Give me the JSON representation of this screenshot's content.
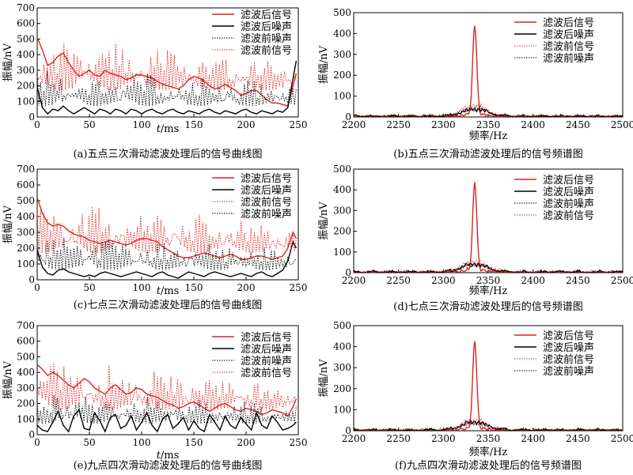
{
  "colors": {
    "red": "#e02020",
    "black": "#000000"
  },
  "chart_data": [
    {
      "id": "a",
      "type": "line",
      "kind": "time",
      "caption": "(a)五点三次滑动滤波处理后的信号曲线图",
      "xlabel_italic": "t",
      "xlabel_unit": "/ms",
      "ylabel": "振幅/nV",
      "xlim": [
        0,
        250
      ],
      "ylim": [
        0,
        700
      ],
      "xticks": [
        "0",
        "50",
        "100",
        "150",
        "200",
        "250"
      ],
      "yticks": [
        "0",
        "100",
        "200",
        "300",
        "400",
        "500",
        "600",
        "700"
      ],
      "series": [
        {
          "name": "滤波后信号",
          "color": "#e02020",
          "style": "solid",
          "x": [
            0,
            5,
            10,
            15,
            20,
            25,
            30,
            35,
            40,
            45,
            50,
            55,
            60,
            65,
            70,
            75,
            80,
            85,
            90,
            95,
            100,
            105,
            110,
            115,
            120,
            125,
            130,
            135,
            140,
            145,
            150,
            155,
            160,
            165,
            170,
            175,
            180,
            185,
            190,
            195,
            200,
            205,
            210,
            215,
            220,
            225,
            230,
            235,
            240,
            245,
            248
          ],
          "y": [
            510,
            430,
            330,
            350,
            390,
            410,
            350,
            300,
            260,
            280,
            300,
            270,
            260,
            300,
            280,
            270,
            260,
            240,
            250,
            270,
            270,
            260,
            250,
            230,
            210,
            200,
            190,
            180,
            200,
            240,
            260,
            250,
            230,
            200,
            180,
            190,
            210,
            190,
            170,
            140,
            150,
            170,
            170,
            140,
            110,
            90,
            90,
            80,
            70,
            200,
            280
          ]
        },
        {
          "name": "滤波后噪声",
          "color": "#000000",
          "style": "solid",
          "x": [
            0,
            5,
            10,
            15,
            20,
            25,
            30,
            35,
            40,
            45,
            50,
            55,
            60,
            65,
            70,
            75,
            80,
            85,
            90,
            95,
            100,
            105,
            110,
            115,
            120,
            125,
            130,
            135,
            140,
            145,
            150,
            155,
            160,
            165,
            170,
            175,
            180,
            185,
            190,
            195,
            200,
            205,
            210,
            215,
            220,
            225,
            230,
            235,
            240,
            245,
            248
          ],
          "y": [
            190,
            60,
            20,
            50,
            40,
            70,
            40,
            20,
            40,
            60,
            40,
            20,
            50,
            40,
            20,
            50,
            40,
            20,
            50,
            40,
            20,
            40,
            50,
            30,
            20,
            40,
            50,
            30,
            20,
            40,
            30,
            20,
            40,
            50,
            30,
            20,
            40,
            30,
            20,
            40,
            50,
            30,
            20,
            40,
            30,
            20,
            40,
            30,
            60,
            250,
            360
          ]
        },
        {
          "name": "滤波前噪声",
          "color": "#000000",
          "style": "dotted",
          "amp": 230,
          "base": 70
        },
        {
          "name": "滤波前信号",
          "color": "#e02020",
          "style": "dotted",
          "amp": 320,
          "base": 170
        }
      ]
    },
    {
      "id": "b",
      "type": "line",
      "kind": "spectrum",
      "caption": "(b)五点三次滑动滤波处理后的信号频谱图",
      "xlabel": "频率/Hz",
      "ylabel": "振幅/nV",
      "xlim": [
        2200,
        2500
      ],
      "ylim": [
        0,
        500
      ],
      "xticks": [
        "2200",
        "2250",
        "2300",
        "2350",
        "2400",
        "2450",
        "2500"
      ],
      "yticks": [
        "0",
        "100",
        "200",
        "300",
        "400",
        "500"
      ],
      "peak_x": 2335,
      "series": [
        {
          "name": "滤波后信号",
          "color": "#e02020",
          "style": "solid",
          "peak": 430
        },
        {
          "name": "滤波后噪声",
          "color": "#000000",
          "style": "solid",
          "peak": 40
        },
        {
          "name": "滤波前信号",
          "color": "#e02020",
          "style": "dotted",
          "peak": 60
        },
        {
          "name": "滤波前噪声",
          "color": "#000000",
          "style": "dotted",
          "peak": 45
        }
      ]
    },
    {
      "id": "c",
      "type": "line",
      "kind": "time",
      "caption": "(c)七点三次滑动滤波处理后的信号曲线图",
      "xlabel_italic": "t",
      "xlabel_unit": "/ms",
      "ylabel": "振幅/nV",
      "xlim": [
        0,
        250
      ],
      "ylim": [
        0,
        700
      ],
      "xticks": [
        "0",
        "50",
        "100",
        "150",
        "200",
        "250"
      ],
      "yticks": [
        "0",
        "100",
        "200",
        "300",
        "400",
        "500",
        "600",
        "700"
      ],
      "series": [
        {
          "name": "滤波后信号",
          "color": "#e02020",
          "style": "solid",
          "x": [
            0,
            5,
            10,
            15,
            20,
            25,
            30,
            35,
            40,
            45,
            50,
            55,
            60,
            65,
            70,
            75,
            80,
            85,
            90,
            95,
            100,
            105,
            110,
            115,
            120,
            125,
            130,
            135,
            140,
            145,
            150,
            155,
            160,
            165,
            170,
            175,
            180,
            185,
            190,
            195,
            200,
            205,
            210,
            215,
            220,
            225,
            230,
            235,
            240,
            245,
            248
          ],
          "y": [
            520,
            420,
            360,
            340,
            350,
            340,
            310,
            290,
            280,
            270,
            250,
            240,
            230,
            240,
            250,
            240,
            230,
            220,
            230,
            250,
            260,
            260,
            250,
            240,
            210,
            190,
            170,
            150,
            140,
            140,
            150,
            160,
            170,
            160,
            150,
            140,
            150,
            160,
            150,
            130,
            130,
            140,
            150,
            150,
            140,
            130,
            140,
            150,
            200,
            300,
            260
          ]
        },
        {
          "name": "滤波后噪声",
          "color": "#000000",
          "style": "solid",
          "x": [
            0,
            5,
            10,
            15,
            20,
            25,
            30,
            35,
            40,
            45,
            50,
            55,
            60,
            65,
            70,
            75,
            80,
            85,
            90,
            95,
            100,
            105,
            110,
            115,
            120,
            125,
            130,
            135,
            140,
            145,
            150,
            155,
            160,
            165,
            170,
            175,
            180,
            185,
            190,
            195,
            200,
            205,
            210,
            215,
            220,
            225,
            230,
            235,
            240,
            245,
            248
          ],
          "y": [
            190,
            80,
            40,
            30,
            60,
            70,
            50,
            40,
            30,
            20,
            30,
            20,
            40,
            50,
            40,
            30,
            20,
            30,
            40,
            50,
            40,
            30,
            20,
            40,
            50,
            30,
            20,
            10,
            30,
            50,
            40,
            30,
            20,
            40,
            50,
            40,
            30,
            20,
            30,
            40,
            30,
            20,
            40,
            50,
            30,
            20,
            40,
            60,
            120,
            240,
            200
          ]
        },
        {
          "name": "滤波前信号",
          "color": "#e02020",
          "style": "dotted",
          "amp": 300,
          "base": 170
        },
        {
          "name": "滤波前噪声",
          "color": "#000000",
          "style": "dotted",
          "amp": 220,
          "base": 60
        }
      ]
    },
    {
      "id": "d",
      "type": "line",
      "kind": "spectrum",
      "caption": "(d)七点三次滑动滤波处理后的信号频谱图",
      "xlabel": "频率/Hz",
      "ylabel": "振幅/nV",
      "xlim": [
        2200,
        2500
      ],
      "ylim": [
        0,
        500
      ],
      "xticks": [
        "2200",
        "2250",
        "2300",
        "2350",
        "2400",
        "2450",
        "2500"
      ],
      "yticks": [
        "0",
        "100",
        "200",
        "300",
        "400",
        "500"
      ],
      "peak_x": 2335,
      "series": [
        {
          "name": "滤波后信号",
          "color": "#e02020",
          "style": "solid",
          "peak": 425
        },
        {
          "name": "滤波后噪声",
          "color": "#000000",
          "style": "solid",
          "peak": 45
        },
        {
          "name": "滤波前噪声",
          "color": "#000000",
          "style": "dotted",
          "peak": 40
        },
        {
          "name": "滤波前信号",
          "color": "#e02020",
          "style": "dotted",
          "peak": 60
        }
      ]
    },
    {
      "id": "e",
      "type": "line",
      "kind": "time",
      "caption": "(e)九点四次滑动滤波处理后的信号曲线图",
      "xlabel_italic": "t",
      "xlabel_unit": "/ms",
      "ylabel": "振幅/nV",
      "xlim": [
        0,
        250
      ],
      "ylim": [
        0,
        700
      ],
      "xticks": [
        "0",
        "50",
        "100",
        "150",
        "200",
        "250"
      ],
      "yticks": [
        "0",
        "100",
        "200",
        "300",
        "400",
        "500",
        "600",
        "700"
      ],
      "series": [
        {
          "name": "滤波后信号",
          "color": "#e02020",
          "style": "solid",
          "x": [
            0,
            5,
            10,
            15,
            20,
            25,
            30,
            35,
            40,
            45,
            50,
            55,
            60,
            65,
            70,
            75,
            80,
            85,
            90,
            95,
            100,
            105,
            110,
            115,
            120,
            125,
            130,
            135,
            140,
            145,
            150,
            155,
            160,
            165,
            170,
            175,
            180,
            185,
            190,
            195,
            200,
            205,
            210,
            215,
            220,
            225,
            230,
            235,
            240,
            245,
            248
          ],
          "y": [
            450,
            420,
            380,
            400,
            380,
            350,
            320,
            300,
            330,
            360,
            340,
            300,
            280,
            260,
            300,
            320,
            290,
            260,
            270,
            300,
            290,
            260,
            250,
            240,
            220,
            200,
            190,
            170,
            180,
            200,
            210,
            190,
            170,
            150,
            170,
            190,
            200,
            180,
            160,
            150,
            170,
            160,
            150,
            130,
            140,
            160,
            150,
            140,
            120,
            180,
            230
          ]
        },
        {
          "name": "滤波后噪声",
          "color": "#000000",
          "style": "solid",
          "x": [
            0,
            5,
            10,
            15,
            20,
            25,
            30,
            35,
            40,
            45,
            50,
            55,
            60,
            65,
            70,
            75,
            80,
            85,
            90,
            95,
            100,
            105,
            110,
            115,
            120,
            125,
            130,
            135,
            140,
            145,
            150,
            155,
            160,
            165,
            170,
            175,
            180,
            185,
            190,
            195,
            200,
            205,
            210,
            215,
            220,
            225,
            230,
            235,
            240,
            245,
            248
          ],
          "y": [
            60,
            30,
            20,
            80,
            150,
            60,
            20,
            120,
            160,
            40,
            30,
            140,
            90,
            20,
            110,
            130,
            40,
            60,
            120,
            30,
            80,
            140,
            60,
            20,
            100,
            130,
            40,
            70,
            110,
            30,
            90,
            40,
            20,
            130,
            80,
            30,
            120,
            60,
            40,
            110,
            70,
            30,
            140,
            60,
            40,
            120,
            80,
            30,
            40,
            60,
            80
          ]
        },
        {
          "name": "滤波前噪声",
          "color": "#000000",
          "style": "dotted",
          "amp": 200,
          "base": 70
        },
        {
          "name": "滤波前信号",
          "color": "#e02020",
          "style": "dotted",
          "amp": 300,
          "base": 160
        }
      ]
    },
    {
      "id": "f",
      "type": "line",
      "kind": "spectrum",
      "caption": "(f)九点四次滑动滤波处理后的信号频谱图",
      "xlabel": "频率/Hz",
      "ylabel": "振幅/nV",
      "xlim": [
        2200,
        2500
      ],
      "ylim": [
        0,
        500
      ],
      "xticks": [
        "2200",
        "2250",
        "2300",
        "2350",
        "2400",
        "2450",
        "2500"
      ],
      "yticks": [
        "0",
        "100",
        "200",
        "300",
        "400",
        "500"
      ],
      "peak_x": 2335,
      "series": [
        {
          "name": "滤波后信号",
          "color": "#e02020",
          "style": "solid",
          "peak": 415
        },
        {
          "name": "滤波后噪声",
          "color": "#000000",
          "style": "solid",
          "peak": 45
        },
        {
          "name": "滤波前信号",
          "color": "#e02020",
          "style": "dotted",
          "peak": 55
        },
        {
          "name": "滤波前噪声",
          "color": "#000000",
          "style": "dotted",
          "peak": 40
        }
      ]
    }
  ]
}
